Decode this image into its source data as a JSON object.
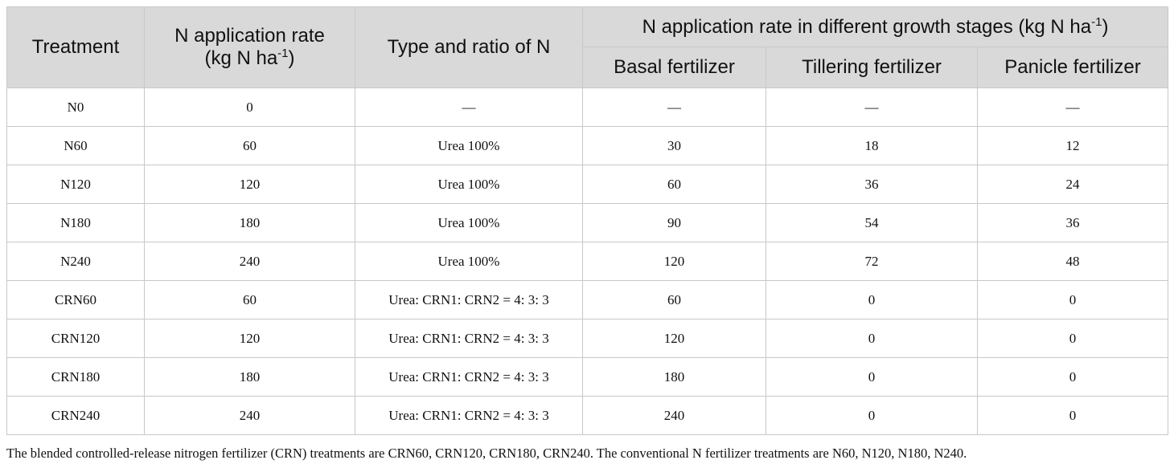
{
  "header": {
    "treatment": "Treatment",
    "rate_main": "N application rate",
    "rate_unit_pre": "(kg N ha",
    "rate_unit_sup": "-1",
    "rate_unit_post": ")",
    "type_ratio": "Type and ratio of N",
    "stages_main": "N application rate in different growth stages (kg N ha",
    "stages_sup": "-1",
    "stages_post": ")",
    "basal": "Basal fertilizer",
    "tillering": "Tillering fertilizer",
    "panicle": "Panicle fertilizer"
  },
  "rows": [
    {
      "treatment": "N0",
      "rate": "0",
      "type": "—",
      "basal": "—",
      "tillering": "—",
      "panicle": "—"
    },
    {
      "treatment": "N60",
      "rate": "60",
      "type": "Urea 100%",
      "basal": "30",
      "tillering": "18",
      "panicle": "12"
    },
    {
      "treatment": "N120",
      "rate": "120",
      "type": "Urea 100%",
      "basal": "60",
      "tillering": "36",
      "panicle": "24"
    },
    {
      "treatment": "N180",
      "rate": "180",
      "type": "Urea 100%",
      "basal": "90",
      "tillering": "54",
      "panicle": "36"
    },
    {
      "treatment": "N240",
      "rate": "240",
      "type": "Urea 100%",
      "basal": "120",
      "tillering": "72",
      "panicle": "48"
    },
    {
      "treatment": "CRN60",
      "rate": "60",
      "type": "Urea: CRN1: CRN2 = 4: 3: 3",
      "basal": "60",
      "tillering": "0",
      "panicle": "0"
    },
    {
      "treatment": "CRN120",
      "rate": "120",
      "type": "Urea: CRN1: CRN2 = 4: 3: 3",
      "basal": "120",
      "tillering": "0",
      "panicle": "0"
    },
    {
      "treatment": "CRN180",
      "rate": "180",
      "type": "Urea: CRN1: CRN2 = 4: 3: 3",
      "basal": "180",
      "tillering": "0",
      "panicle": "0"
    },
    {
      "treatment": "CRN240",
      "rate": "240",
      "type": "Urea: CRN1: CRN2 = 4: 3: 3",
      "basal": "240",
      "tillering": "0",
      "panicle": "0"
    }
  ],
  "footnote": "The blended controlled-release nitrogen fertilizer (CRN) treatments are CRN60, CRN120, CRN180, CRN240. The conventional N fertilizer treatments are N60, N120, N180, N240."
}
